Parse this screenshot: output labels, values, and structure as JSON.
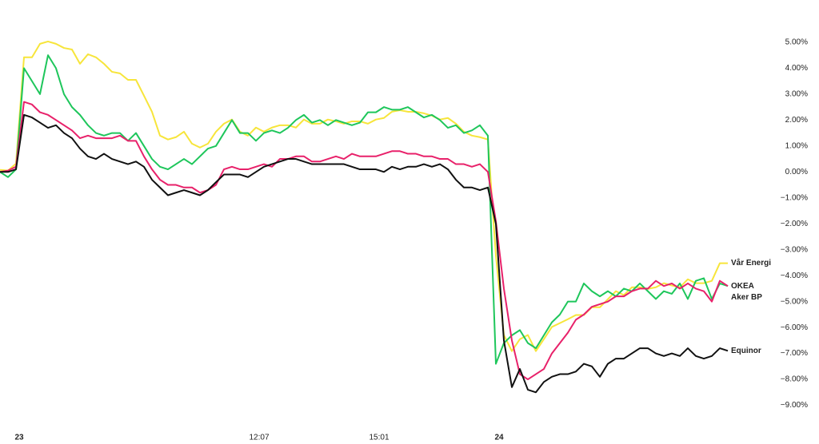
{
  "chart_data": {
    "type": "line",
    "categories": [
      null,
      null,
      "23",
      null,
      null,
      null,
      null,
      null,
      null,
      null,
      null,
      null,
      null,
      null,
      null,
      null,
      null,
      null,
      null,
      null,
      null,
      null,
      null,
      null,
      null,
      null,
      null,
      null,
      null,
      null,
      null,
      null,
      "12:07",
      null,
      null,
      null,
      null,
      null,
      null,
      null,
      null,
      null,
      null,
      null,
      null,
      null,
      null,
      "15:01",
      null,
      null,
      null,
      null,
      null,
      null,
      null,
      null,
      null,
      null,
      null,
      null,
      null,
      null,
      "24",
      null,
      null,
      null,
      null,
      null,
      null,
      null,
      null,
      null,
      null,
      null,
      null,
      null,
      null,
      null,
      null,
      null,
      null,
      null,
      null,
      null,
      null,
      null,
      null,
      null,
      null,
      null,
      null,
      null
    ],
    "series": [
      {
        "name": "Vår Energi",
        "color": "#f7e53b",
        "values": [
          0.08,
          0.05,
          0.32,
          4.42,
          4.42,
          4.94,
          5.03,
          4.94,
          4.78,
          4.72,
          4.17,
          4.54,
          4.42,
          4.17,
          3.86,
          3.8,
          3.55,
          3.55,
          2.94,
          2.32,
          1.4,
          1.25,
          1.34,
          1.55,
          1.09,
          0.94,
          1.09,
          1.55,
          1.86,
          2.02,
          1.55,
          1.4,
          1.71,
          1.55,
          1.71,
          1.8,
          1.8,
          1.71,
          2.02,
          1.86,
          1.86,
          2.02,
          1.95,
          1.86,
          1.95,
          1.95,
          1.86,
          2.02,
          2.08,
          2.32,
          2.38,
          2.32,
          2.32,
          2.26,
          2.17,
          2.02,
          2.08,
          1.86,
          1.55,
          1.4,
          1.34,
          1.25,
          -3.22,
          -6.29,
          -6.91,
          -6.45,
          -6.29,
          -6.91,
          -6.45,
          -5.98,
          -5.83,
          -5.68,
          -5.52,
          -5.52,
          -5.22,
          -5.22,
          -4.91,
          -4.6,
          -4.75,
          -4.45,
          -4.45,
          -4.51,
          -4.45,
          -4.29,
          -4.38,
          -4.45,
          -4.14,
          -4.29,
          -4.29,
          -4.2,
          -3.52,
          -3.52
        ]
      },
      {
        "name": "OKEA",
        "color": "#1ec65b",
        "values": [
          0.0,
          -0.2,
          0.1,
          4.0,
          3.5,
          3.0,
          4.5,
          4.0,
          3.0,
          2.5,
          2.2,
          1.8,
          1.5,
          1.4,
          1.5,
          1.5,
          1.2,
          1.5,
          1.0,
          0.5,
          0.2,
          0.1,
          0.3,
          0.5,
          0.3,
          0.6,
          0.9,
          1.0,
          1.5,
          2.0,
          1.5,
          1.5,
          1.2,
          1.5,
          1.6,
          1.5,
          1.7,
          2.0,
          2.2,
          1.9,
          2.0,
          1.8,
          2.0,
          1.9,
          1.8,
          1.9,
          2.3,
          2.3,
          2.5,
          2.4,
          2.4,
          2.5,
          2.3,
          2.1,
          2.2,
          2.0,
          1.7,
          1.8,
          1.5,
          1.6,
          1.8,
          1.4,
          -7.4,
          -6.6,
          -6.3,
          -6.1,
          -6.6,
          -6.8,
          -6.3,
          -5.8,
          -5.5,
          -5.0,
          -5.0,
          -4.3,
          -4.6,
          -4.8,
          -4.6,
          -4.8,
          -4.5,
          -4.6,
          -4.3,
          -4.6,
          -4.9,
          -4.6,
          -4.7,
          -4.3,
          -4.9,
          -4.2,
          -4.1,
          -4.9,
          -4.3,
          -4.4
        ]
      },
      {
        "name": "Aker BP",
        "color": "#e8216a",
        "values": [
          0.0,
          0.05,
          0.2,
          2.7,
          2.6,
          2.3,
          2.2,
          2.0,
          1.8,
          1.6,
          1.3,
          1.4,
          1.3,
          1.3,
          1.3,
          1.4,
          1.2,
          1.2,
          0.6,
          0.1,
          -0.3,
          -0.5,
          -0.5,
          -0.6,
          -0.6,
          -0.8,
          -0.7,
          -0.5,
          0.1,
          0.2,
          0.1,
          0.1,
          0.2,
          0.3,
          0.2,
          0.5,
          0.5,
          0.6,
          0.6,
          0.4,
          0.4,
          0.5,
          0.6,
          0.5,
          0.7,
          0.6,
          0.6,
          0.6,
          0.7,
          0.8,
          0.8,
          0.7,
          0.7,
          0.6,
          0.6,
          0.5,
          0.5,
          0.3,
          0.3,
          0.2,
          0.3,
          0.0,
          -1.9,
          -4.5,
          -6.5,
          -7.8,
          -8.0,
          -7.8,
          -7.6,
          -7.0,
          -6.6,
          -6.2,
          -5.7,
          -5.5,
          -5.2,
          -5.1,
          -5.0,
          -4.8,
          -4.8,
          -4.6,
          -4.5,
          -4.5,
          -4.2,
          -4.4,
          -4.3,
          -4.5,
          -4.3,
          -4.5,
          -4.6,
          -5.0,
          -4.2,
          -4.4
        ]
      },
      {
        "name": "Equinor",
        "color": "#111111",
        "values": [
          0.0,
          0.0,
          0.1,
          2.2,
          2.1,
          1.9,
          1.7,
          1.8,
          1.5,
          1.3,
          0.9,
          0.6,
          0.5,
          0.7,
          0.5,
          0.4,
          0.3,
          0.4,
          0.2,
          -0.3,
          -0.6,
          -0.9,
          -0.8,
          -0.7,
          -0.8,
          -0.9,
          -0.7,
          -0.4,
          -0.1,
          -0.1,
          -0.1,
          -0.2,
          0.0,
          0.2,
          0.3,
          0.4,
          0.5,
          0.5,
          0.4,
          0.3,
          0.3,
          0.3,
          0.3,
          0.3,
          0.2,
          0.1,
          0.1,
          0.1,
          0.0,
          0.2,
          0.1,
          0.2,
          0.2,
          0.3,
          0.2,
          0.3,
          0.1,
          -0.3,
          -0.6,
          -0.6,
          -0.7,
          -0.6,
          -2.0,
          -6.5,
          -8.3,
          -7.6,
          -8.4,
          -8.5,
          -8.1,
          -7.9,
          -7.8,
          -7.8,
          -7.7,
          -7.4,
          -7.5,
          -7.9,
          -7.4,
          -7.2,
          -7.2,
          -7.0,
          -6.8,
          -6.8,
          -7.0,
          -7.1,
          -7.0,
          -7.1,
          -6.8,
          -7.1,
          -7.2,
          -7.1,
          -6.8,
          -6.9
        ]
      }
    ],
    "ylim": [
      -10,
      6.63
    ],
    "yticks": [
      {
        "value": 5,
        "label": "5.00%"
      },
      {
        "value": 4,
        "label": "4.00%"
      },
      {
        "value": 3,
        "label": "3.00%"
      },
      {
        "value": 2,
        "label": "2.00%"
      },
      {
        "value": 1,
        "label": "1.00%"
      },
      {
        "value": 0,
        "label": "0.00%"
      },
      {
        "value": -1,
        "label": "−1.00%"
      },
      {
        "value": -2,
        "label": "−2.00%"
      },
      {
        "value": -3,
        "label": "−3.00%"
      },
      {
        "value": -4,
        "label": "−4.00%"
      },
      {
        "value": -5,
        "label": "−5.00%"
      },
      {
        "value": -6,
        "label": "−6.00%"
      },
      {
        "value": -7,
        "label": "−7.00%"
      },
      {
        "value": -8,
        "label": "−8.00%"
      },
      {
        "value": -9,
        "label": "−9.00%"
      }
    ]
  }
}
